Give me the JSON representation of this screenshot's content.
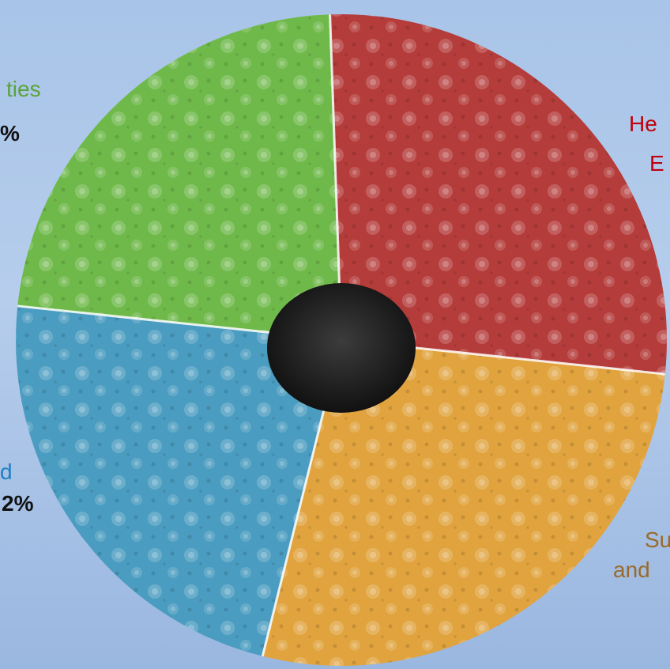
{
  "colors": {
    "green": "#6fb94a",
    "red": "#b43c3a",
    "orange": "#e0a33e",
    "blue": "#4a9cc0",
    "hole": "#1a1a1a",
    "label_green": "#5aa33a",
    "label_red": "#c0000f",
    "label_blue": "#1f7fc0",
    "label_orange": "#9a6a2a"
  },
  "labels": {
    "green_text": "ties",
    "green_pct": "%",
    "red_line1": "He",
    "red_line2": "E",
    "blue_text": "d",
    "blue_pct": "2%",
    "orange_line1": "Su",
    "orange_line2": "and"
  },
  "chart_data": {
    "type": "pie",
    "style": "donut",
    "slices": [
      {
        "color_key": "red",
        "start_deg": -2,
        "end_deg": 96
      },
      {
        "color_key": "orange",
        "start_deg": 96,
        "end_deg": 194
      },
      {
        "color_key": "blue",
        "start_deg": 194,
        "end_deg": 276
      },
      {
        "color_key": "green",
        "start_deg": 276,
        "end_deg": 358
      }
    ],
    "visible_percent_labels": [
      "%",
      "2%"
    ]
  }
}
